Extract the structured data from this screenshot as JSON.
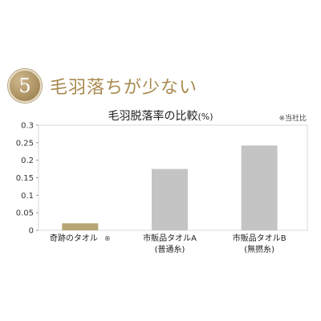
{
  "header": {
    "badge_number": "5",
    "headline": "毛羽落ちが少ない"
  },
  "chart_data": {
    "type": "bar",
    "title": "毛羽脱落率の比較",
    "title_unit": "(%)",
    "source_note": "※当社比",
    "categories": [
      {
        "line1": "奇跡のタオル",
        "mark": "®",
        "line2": ""
      },
      {
        "line1": "市販品タオルA",
        "mark": "",
        "line2": "(普通糸)"
      },
      {
        "line1": "市販品タオルB",
        "mark": "",
        "line2": "(無撚糸)"
      }
    ],
    "values": [
      0.02,
      0.175,
      0.242
    ],
    "bar_colors": [
      "#b8a574",
      "#c4c4c4",
      "#c4c4c4"
    ],
    "ylim": [
      0,
      0.3
    ],
    "yticks": [
      "0",
      "0.05",
      "0.1",
      "0.15",
      "0.2",
      "0.25",
      "0.3"
    ],
    "grid": false,
    "legend": "none"
  }
}
